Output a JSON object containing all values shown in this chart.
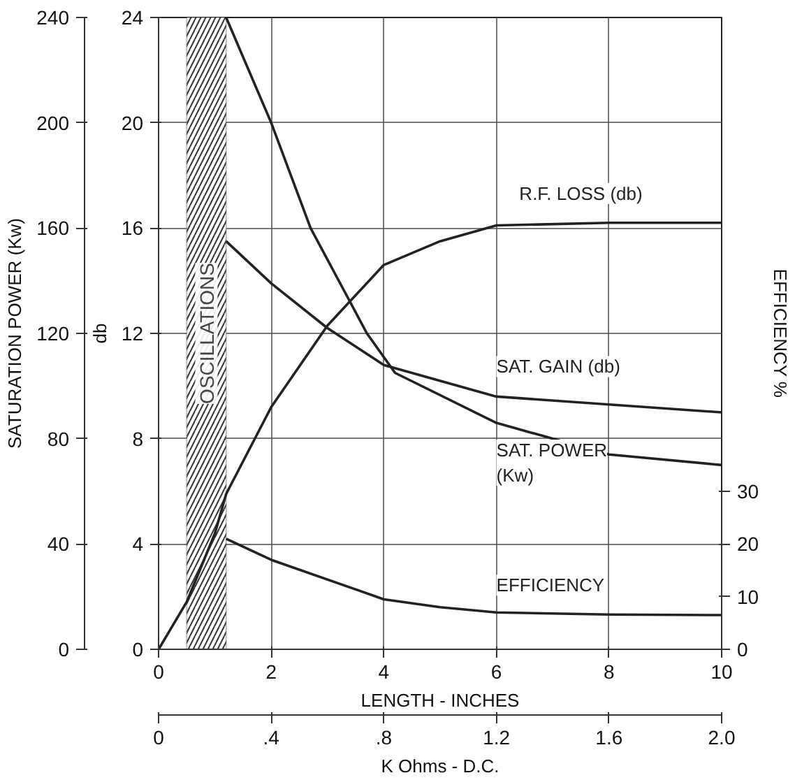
{
  "chart_data": {
    "type": "line",
    "xlabel": "LENGTH - INCHES",
    "ylabel": "db",
    "y2label": "EFFICIENCY %",
    "y3label": "SATURATION POWER (Kw)",
    "x2label": "K Ohms - D.C.",
    "xlim": [
      0,
      10
    ],
    "xticks": [
      0,
      2,
      4,
      6,
      8,
      10
    ],
    "ylim": [
      0,
      24
    ],
    "yticks": [
      0,
      4,
      8,
      12,
      16,
      20,
      24
    ],
    "y2lim": [
      0,
      120
    ],
    "y2ticks": [
      0,
      10,
      20,
      30
    ],
    "y3lim": [
      0,
      240
    ],
    "y3ticks": [
      0,
      40,
      80,
      120,
      160,
      200,
      240
    ],
    "x2lim": [
      0,
      2
    ],
    "x2ticks": [
      0,
      {
        "value": 0.4,
        "label": ".4"
      },
      {
        "value": 0.8,
        "label": ".8"
      },
      1.2,
      1.6,
      {
        "value": 2,
        "label": "2.0"
      }
    ],
    "grid": true,
    "marker": "none",
    "line_style": "solid",
    "bands": [
      {
        "axis": "x",
        "from": 0.5,
        "to": 1.2,
        "label": "OSCILLATIONS"
      }
    ],
    "series": [
      {
        "name": "R.F. LOSS (db)",
        "color": "#222222",
        "x": [
          0,
          0.5,
          1,
          1.2,
          2,
          3,
          4,
          5,
          6,
          8,
          10
        ],
        "values": [
          0,
          1.8,
          4.4,
          5.9,
          9.2,
          12.3,
          14.6,
          15.5,
          16.1,
          16.2,
          16.2
        ]
      },
      {
        "name": "SAT. GAIN (db)",
        "color": "#222222",
        "x": [
          1.2,
          2,
          3,
          4,
          6,
          8,
          10
        ],
        "values": [
          15.5,
          13.9,
          12.2,
          10.8,
          9.6,
          9.3,
          9.0
        ]
      },
      {
        "name": "SAT. POWER\n(Kw)",
        "color": "#222222",
        "axis": "y3",
        "x": [
          1.2,
          2,
          2.7,
          3.7,
          4.2,
          6,
          8,
          10
        ],
        "values": [
          240,
          200,
          160,
          120,
          105,
          86,
          74,
          70
        ]
      },
      {
        "name": "EFFICIENCY",
        "color": "#222222",
        "axis": "y2",
        "x": [
          1.2,
          2,
          4,
          5,
          6,
          8,
          10
        ],
        "values": [
          21,
          17,
          9.5,
          8,
          7,
          6.6,
          6.5
        ]
      }
    ]
  }
}
